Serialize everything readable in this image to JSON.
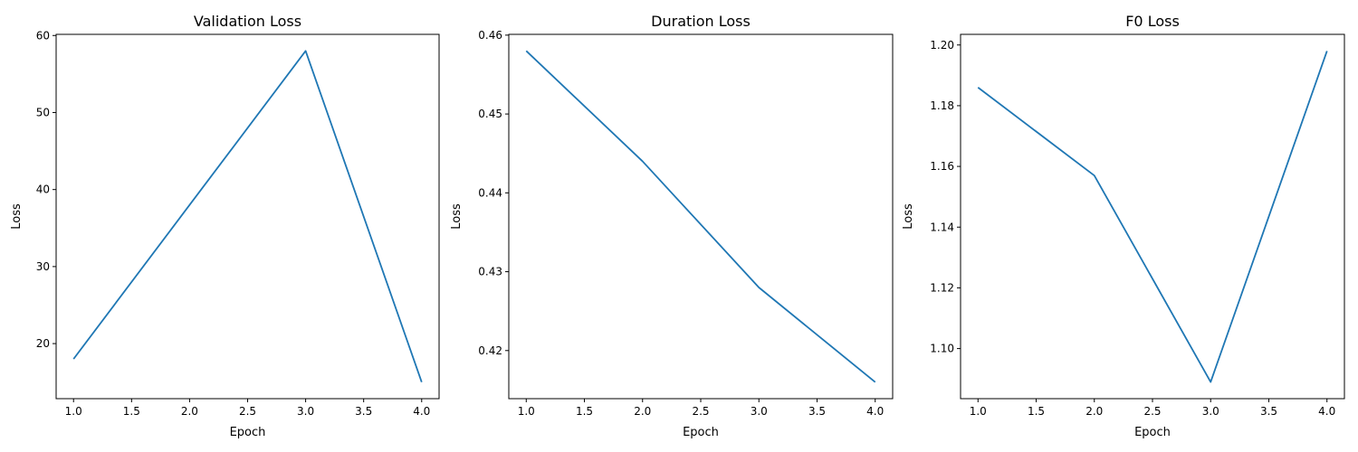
{
  "chart_data": [
    {
      "type": "line",
      "title": "Validation Loss",
      "xlabel": "Epoch",
      "ylabel": "Loss",
      "x": [
        1,
        2,
        3,
        4
      ],
      "series": [
        {
          "values": [
            18,
            38,
            58,
            15
          ],
          "color": "#1f77b4"
        }
      ],
      "xlim": [
        0.85,
        4.15
      ],
      "ylim": [
        12.85,
        60.15
      ],
      "xticks": [
        1.0,
        1.5,
        2.0,
        2.5,
        3.0,
        3.5,
        4.0
      ],
      "xtick_labels": [
        "1.0",
        "1.5",
        "2.0",
        "2.5",
        "3.0",
        "3.5",
        "4.0"
      ],
      "yticks": [
        20,
        30,
        40,
        50,
        60
      ],
      "ytick_labels": [
        "20",
        "30",
        "40",
        "50",
        "60"
      ],
      "grid": false
    },
    {
      "type": "line",
      "title": "Duration Loss",
      "xlabel": "Epoch",
      "ylabel": "Loss",
      "x": [
        1,
        2,
        3,
        4
      ],
      "series": [
        {
          "values": [
            0.458,
            0.444,
            0.428,
            0.416
          ],
          "color": "#1f77b4"
        }
      ],
      "xlim": [
        0.85,
        4.15
      ],
      "ylim": [
        0.4139,
        0.4601
      ],
      "xticks": [
        1.0,
        1.5,
        2.0,
        2.5,
        3.0,
        3.5,
        4.0
      ],
      "xtick_labels": [
        "1.0",
        "1.5",
        "2.0",
        "2.5",
        "3.0",
        "3.5",
        "4.0"
      ],
      "yticks": [
        0.42,
        0.43,
        0.44,
        0.45,
        0.46
      ],
      "ytick_labels": [
        "0.42",
        "0.43",
        "0.44",
        "0.45",
        "0.46"
      ],
      "grid": false
    },
    {
      "type": "line",
      "title": "F0 Loss",
      "xlabel": "Epoch",
      "ylabel": "Loss",
      "x": [
        1,
        2,
        3,
        4
      ],
      "series": [
        {
          "values": [
            1.186,
            1.157,
            1.089,
            1.198
          ],
          "color": "#1f77b4"
        }
      ],
      "xlim": [
        0.85,
        4.15
      ],
      "ylim": [
        1.0835,
        1.2035
      ],
      "xticks": [
        1.0,
        1.5,
        2.0,
        2.5,
        3.0,
        3.5,
        4.0
      ],
      "xtick_labels": [
        "1.0",
        "1.5",
        "2.0",
        "2.5",
        "3.0",
        "3.5",
        "4.0"
      ],
      "yticks": [
        1.1,
        1.12,
        1.14,
        1.16,
        1.18,
        1.2
      ],
      "ytick_labels": [
        "1.10",
        "1.12",
        "1.14",
        "1.16",
        "1.18",
        "1.20"
      ],
      "grid": false
    }
  ]
}
